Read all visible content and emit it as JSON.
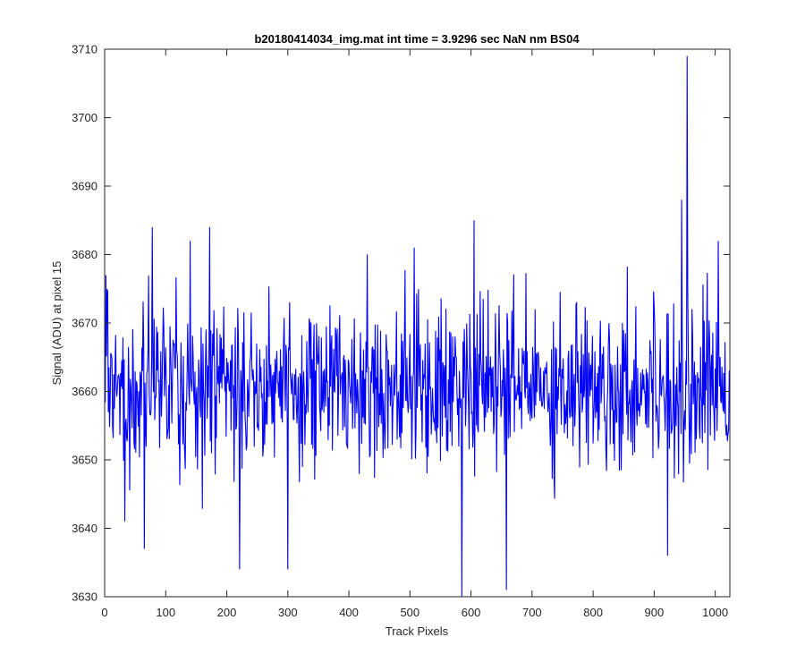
{
  "chart_data": {
    "type": "line",
    "title": "b20180414034_img.mat int time = 3.9296 sec  NaN nm BS04",
    "xlabel": "Track Pixels",
    "ylabel": "Signal (ADU) at pixel 15",
    "xlim": [
      0,
      1024
    ],
    "ylim": [
      3630,
      3710
    ],
    "xticks": [
      0,
      100,
      200,
      300,
      400,
      500,
      600,
      700,
      800,
      900,
      1000
    ],
    "yticks": [
      3630,
      3640,
      3650,
      3660,
      3670,
      3680,
      3690,
      3700,
      3710
    ],
    "grid": false,
    "legend": "none",
    "series": [
      {
        "color": "#0000ff",
        "x_start": 1,
        "x_step": 1,
        "n_points": 1024,
        "baseline": 3661,
        "noise_sd": 6,
        "notable_points": [
          {
            "x": 2,
            "y": 3677
          },
          {
            "x": 33,
            "y": 3641
          },
          {
            "x": 65,
            "y": 3637
          },
          {
            "x": 78,
            "y": 3684
          },
          {
            "x": 140,
            "y": 3682
          },
          {
            "x": 172,
            "y": 3684
          },
          {
            "x": 221,
            "y": 3634
          },
          {
            "x": 300,
            "y": 3634
          },
          {
            "x": 430,
            "y": 3680
          },
          {
            "x": 507,
            "y": 3681
          },
          {
            "x": 585,
            "y": 3630
          },
          {
            "x": 605,
            "y": 3685
          },
          {
            "x": 658,
            "y": 3631
          },
          {
            "x": 922,
            "y": 3636
          },
          {
            "x": 945,
            "y": 3688
          },
          {
            "x": 954,
            "y": 3709
          },
          {
            "x": 1005,
            "y": 3682
          }
        ]
      }
    ]
  }
}
